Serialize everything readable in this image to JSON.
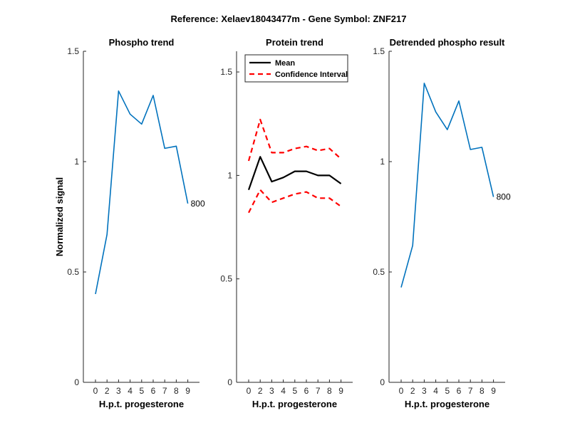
{
  "figure_title": "Reference:  Xelaev18043477m - Gene Symbol:  ZNF217",
  "colors": {
    "phospho": "#0072BD",
    "mean": "#000000",
    "ci": "#FF0000",
    "axis": "#262626"
  },
  "chart_data": [
    {
      "type": "line",
      "title": "Phospho trend",
      "xlabel": "H.p.t. progesterone",
      "ylabel": "Normalized signal",
      "x_ticks": [
        0,
        2,
        3,
        4,
        5,
        6,
        7,
        8,
        9
      ],
      "y_ticks": [
        0,
        0.5,
        1,
        1.5
      ],
      "y_tick_labels": [
        "0",
        "0.5",
        "1",
        "1.5"
      ],
      "ylim": [
        0,
        1.5
      ],
      "grid": false,
      "series": [
        {
          "values": [
            0.4,
            0.67,
            1.32,
            1.215,
            1.17,
            1.3,
            1.06,
            1.07,
            0.81
          ]
        }
      ],
      "annotation": {
        "text": "800",
        "at_index": 8
      }
    },
    {
      "type": "line",
      "title": "Protein trend",
      "xlabel": "H.p.t. progesterone",
      "ylabel": "",
      "x_ticks": [
        0,
        2,
        3,
        4,
        5,
        6,
        7,
        8,
        9
      ],
      "y_ticks": [
        0,
        0.5,
        1,
        1.5
      ],
      "y_tick_labels": [
        "0",
        "0.5",
        "1",
        "1.5"
      ],
      "ylim": [
        0,
        1.6
      ],
      "grid": false,
      "legend": {
        "placement": "top-left"
      },
      "series": [
        {
          "name": "Mean",
          "style": "solid",
          "values": [
            0.93,
            1.09,
            0.97,
            0.99,
            1.02,
            1.02,
            1.0,
            1.0,
            0.96
          ]
        },
        {
          "name": "Confidence Interval",
          "style": "dashed",
          "values": [
            1.07,
            1.27,
            1.11,
            1.11,
            1.13,
            1.14,
            1.12,
            1.13,
            1.08
          ]
        },
        {
          "name": "",
          "style": "dashed",
          "values": [
            0.82,
            0.93,
            0.87,
            0.89,
            0.91,
            0.92,
            0.89,
            0.89,
            0.85
          ]
        }
      ]
    },
    {
      "type": "line",
      "title": "Detrended phospho result",
      "xlabel": "H.p.t. progesterone",
      "ylabel": "",
      "x_ticks": [
        0,
        2,
        3,
        4,
        5,
        6,
        7,
        8,
        9
      ],
      "y_ticks": [
        0,
        0.5,
        1,
        1.5
      ],
      "y_tick_labels": [
        "0",
        "0.5",
        "1",
        "1.5"
      ],
      "ylim": [
        0,
        1.5
      ],
      "grid": false,
      "series": [
        {
          "values": [
            0.43,
            0.62,
            1.355,
            1.225,
            1.145,
            1.275,
            1.055,
            1.065,
            0.84
          ]
        }
      ],
      "annotation": {
        "text": "800",
        "at_index": 8
      }
    }
  ]
}
